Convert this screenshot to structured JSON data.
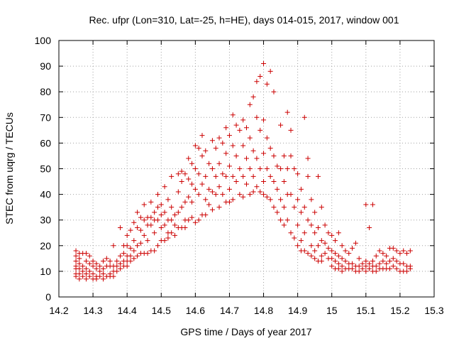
{
  "chart_data": {
    "type": "scatter",
    "title": "Rec. ufpr (Lon=310, Lat=-25, h=HE), days 014-015, 2017, window 001",
    "xlabel": "GPS time / Days of year 2017",
    "ylabel": "STEC from uqrg / TECUs",
    "xlim": [
      14.2,
      15.3
    ],
    "ylim": [
      0,
      100
    ],
    "xticks": [
      "14.2",
      "14.3",
      "14.4",
      "14.5",
      "14.6",
      "14.7",
      "14.8",
      "14.9",
      "15",
      "15.1",
      "15.2",
      "15.3"
    ],
    "yticks": [
      "0",
      "10",
      "20",
      "30",
      "40",
      "50",
      "60",
      "70",
      "80",
      "90",
      "100"
    ],
    "grid": true,
    "marker": "+",
    "marker_color": "#cc0000",
    "points": [
      [
        14.25,
        18
      ],
      [
        14.25,
        16
      ],
      [
        14.25,
        14
      ],
      [
        14.25,
        12
      ],
      [
        14.25,
        11
      ],
      [
        14.25,
        9
      ],
      [
        14.25,
        8
      ],
      [
        14.26,
        17
      ],
      [
        14.26,
        15
      ],
      [
        14.26,
        13
      ],
      [
        14.26,
        11
      ],
      [
        14.26,
        9
      ],
      [
        14.26,
        7
      ],
      [
        14.27,
        17
      ],
      [
        14.27,
        12
      ],
      [
        14.27,
        10
      ],
      [
        14.27,
        8
      ],
      [
        14.28,
        17
      ],
      [
        14.28,
        14
      ],
      [
        14.28,
        11
      ],
      [
        14.28,
        9
      ],
      [
        14.28,
        7
      ],
      [
        14.29,
        16
      ],
      [
        14.29,
        13
      ],
      [
        14.29,
        10
      ],
      [
        14.29,
        8
      ],
      [
        14.3,
        14
      ],
      [
        14.3,
        12
      ],
      [
        14.3,
        9
      ],
      [
        14.3,
        7
      ],
      [
        14.31,
        13
      ],
      [
        14.31,
        11
      ],
      [
        14.31,
        8
      ],
      [
        14.31,
        7
      ],
      [
        14.32,
        12
      ],
      [
        14.32,
        10
      ],
      [
        14.32,
        8
      ],
      [
        14.33,
        14
      ],
      [
        14.33,
        11
      ],
      [
        14.33,
        9
      ],
      [
        14.33,
        7
      ],
      [
        14.34,
        15
      ],
      [
        14.34,
        12
      ],
      [
        14.34,
        8
      ],
      [
        14.35,
        14
      ],
      [
        14.35,
        12
      ],
      [
        14.35,
        9
      ],
      [
        14.35,
        8
      ],
      [
        14.36,
        20
      ],
      [
        14.36,
        12
      ],
      [
        14.36,
        10
      ],
      [
        14.36,
        8
      ],
      [
        14.37,
        14
      ],
      [
        14.37,
        12
      ],
      [
        14.37,
        10
      ],
      [
        14.38,
        27
      ],
      [
        14.38,
        16
      ],
      [
        14.38,
        13
      ],
      [
        14.38,
        11
      ],
      [
        14.39,
        20
      ],
      [
        14.39,
        17
      ],
      [
        14.39,
        14
      ],
      [
        14.39,
        12
      ],
      [
        14.4,
        24
      ],
      [
        14.4,
        20
      ],
      [
        14.4,
        16
      ],
      [
        14.4,
        14
      ],
      [
        14.4,
        12
      ],
      [
        14.41,
        26
      ],
      [
        14.41,
        19
      ],
      [
        14.41,
        16
      ],
      [
        14.41,
        14
      ],
      [
        14.42,
        29
      ],
      [
        14.42,
        22
      ],
      [
        14.42,
        18
      ],
      [
        14.42,
        15
      ],
      [
        14.43,
        33
      ],
      [
        14.43,
        27
      ],
      [
        14.43,
        20
      ],
      [
        14.43,
        16
      ],
      [
        14.44,
        31
      ],
      [
        14.44,
        26
      ],
      [
        14.44,
        21
      ],
      [
        14.44,
        17
      ],
      [
        14.45,
        36
      ],
      [
        14.45,
        30
      ],
      [
        14.45,
        24
      ],
      [
        14.45,
        17
      ],
      [
        14.46,
        31
      ],
      [
        14.46,
        28
      ],
      [
        14.46,
        22
      ],
      [
        14.46,
        17
      ],
      [
        14.47,
        37
      ],
      [
        14.47,
        31
      ],
      [
        14.47,
        28
      ],
      [
        14.47,
        18
      ],
      [
        14.48,
        33
      ],
      [
        14.48,
        30
      ],
      [
        14.48,
        25
      ],
      [
        14.48,
        18
      ],
      [
        14.49,
        40
      ],
      [
        14.49,
        35
      ],
      [
        14.49,
        30
      ],
      [
        14.49,
        20
      ],
      [
        14.5,
        36
      ],
      [
        14.5,
        32
      ],
      [
        14.5,
        27
      ],
      [
        14.5,
        22
      ],
      [
        14.51,
        43
      ],
      [
        14.51,
        33
      ],
      [
        14.51,
        28
      ],
      [
        14.51,
        22
      ],
      [
        14.52,
        38
      ],
      [
        14.52,
        30
      ],
      [
        14.52,
        25
      ],
      [
        14.52,
        23
      ],
      [
        14.53,
        47
      ],
      [
        14.53,
        35
      ],
      [
        14.53,
        30
      ],
      [
        14.53,
        25
      ],
      [
        14.54,
        32
      ],
      [
        14.54,
        28
      ],
      [
        14.54,
        24
      ],
      [
        14.55,
        48
      ],
      [
        14.55,
        41
      ],
      [
        14.55,
        33
      ],
      [
        14.55,
        27
      ],
      [
        14.56,
        49
      ],
      [
        14.56,
        45
      ],
      [
        14.56,
        35
      ],
      [
        14.56,
        27
      ],
      [
        14.57,
        48
      ],
      [
        14.57,
        37
      ],
      [
        14.57,
        30
      ],
      [
        14.57,
        27
      ],
      [
        14.58,
        54
      ],
      [
        14.58,
        46
      ],
      [
        14.58,
        39
      ],
      [
        14.58,
        30
      ],
      [
        14.59,
        52
      ],
      [
        14.59,
        44
      ],
      [
        14.59,
        37
      ],
      [
        14.59,
        31
      ],
      [
        14.6,
        59
      ],
      [
        14.6,
        50
      ],
      [
        14.6,
        42
      ],
      [
        14.6,
        29
      ],
      [
        14.61,
        58
      ],
      [
        14.61,
        48
      ],
      [
        14.61,
        40
      ],
      [
        14.61,
        30
      ],
      [
        14.62,
        63
      ],
      [
        14.62,
        55
      ],
      [
        14.62,
        44
      ],
      [
        14.62,
        32
      ],
      [
        14.63,
        57
      ],
      [
        14.63,
        47
      ],
      [
        14.63,
        38
      ],
      [
        14.63,
        32
      ],
      [
        14.64,
        52
      ],
      [
        14.64,
        42
      ],
      [
        14.64,
        36
      ],
      [
        14.65,
        61
      ],
      [
        14.65,
        50
      ],
      [
        14.65,
        41
      ],
      [
        14.65,
        34
      ],
      [
        14.66,
        58
      ],
      [
        14.66,
        47
      ],
      [
        14.66,
        40
      ],
      [
        14.67,
        62
      ],
      [
        14.67,
        52
      ],
      [
        14.67,
        43
      ],
      [
        14.67,
        35
      ],
      [
        14.68,
        60
      ],
      [
        14.68,
        48
      ],
      [
        14.68,
        40
      ],
      [
        14.69,
        66
      ],
      [
        14.69,
        56
      ],
      [
        14.69,
        47
      ],
      [
        14.69,
        37
      ],
      [
        14.7,
        63
      ],
      [
        14.7,
        51
      ],
      [
        14.7,
        42
      ],
      [
        14.7,
        37
      ],
      [
        14.71,
        71
      ],
      [
        14.71,
        59
      ],
      [
        14.71,
        47
      ],
      [
        14.71,
        38
      ],
      [
        14.72,
        67
      ],
      [
        14.72,
        55
      ],
      [
        14.72,
        45
      ],
      [
        14.73,
        65
      ],
      [
        14.73,
        50
      ],
      [
        14.73,
        40
      ],
      [
        14.74,
        69
      ],
      [
        14.74,
        59
      ],
      [
        14.74,
        47
      ],
      [
        14.74,
        39
      ],
      [
        14.75,
        66
      ],
      [
        14.75,
        54
      ],
      [
        14.75,
        44
      ],
      [
        14.76,
        75
      ],
      [
        14.76,
        62
      ],
      [
        14.76,
        50
      ],
      [
        14.76,
        40
      ],
      [
        14.77,
        78
      ],
      [
        14.77,
        57
      ],
      [
        14.77,
        47
      ],
      [
        14.77,
        41
      ],
      [
        14.78,
        84
      ],
      [
        14.78,
        70
      ],
      [
        14.78,
        54
      ],
      [
        14.78,
        43
      ],
      [
        14.79,
        86
      ],
      [
        14.79,
        65
      ],
      [
        14.79,
        50
      ],
      [
        14.79,
        41
      ],
      [
        14.8,
        91
      ],
      [
        14.8,
        69
      ],
      [
        14.8,
        56
      ],
      [
        14.8,
        45
      ],
      [
        14.8,
        40
      ],
      [
        14.81,
        83
      ],
      [
        14.81,
        62
      ],
      [
        14.81,
        50
      ],
      [
        14.81,
        39
      ],
      [
        14.82,
        88
      ],
      [
        14.82,
        58
      ],
      [
        14.82,
        47
      ],
      [
        14.82,
        38
      ],
      [
        14.83,
        80
      ],
      [
        14.83,
        55
      ],
      [
        14.83,
        45
      ],
      [
        14.83,
        35
      ],
      [
        14.84,
        51
      ],
      [
        14.84,
        42
      ],
      [
        14.84,
        33
      ],
      [
        14.85,
        67
      ],
      [
        14.85,
        50
      ],
      [
        14.85,
        38
      ],
      [
        14.85,
        30
      ],
      [
        14.86,
        55
      ],
      [
        14.86,
        45
      ],
      [
        14.86,
        35
      ],
      [
        14.86,
        28
      ],
      [
        14.87,
        72
      ],
      [
        14.87,
        50
      ],
      [
        14.87,
        40
      ],
      [
        14.87,
        30
      ],
      [
        14.88,
        65
      ],
      [
        14.88,
        55
      ],
      [
        14.88,
        40
      ],
      [
        14.88,
        25
      ],
      [
        14.89,
        50
      ],
      [
        14.89,
        35
      ],
      [
        14.89,
        23
      ],
      [
        14.9,
        48
      ],
      [
        14.9,
        38
      ],
      [
        14.9,
        28
      ],
      [
        14.9,
        20
      ],
      [
        14.91,
        42
      ],
      [
        14.91,
        33
      ],
      [
        14.91,
        22
      ],
      [
        14.91,
        18
      ],
      [
        14.92,
        70
      ],
      [
        14.92,
        35
      ],
      [
        14.92,
        25
      ],
      [
        14.92,
        18
      ],
      [
        14.93,
        54
      ],
      [
        14.93,
        47
      ],
      [
        14.93,
        30
      ],
      [
        14.93,
        17
      ],
      [
        14.94,
        38
      ],
      [
        14.94,
        28
      ],
      [
        14.94,
        20
      ],
      [
        14.94,
        16
      ],
      [
        14.95,
        33
      ],
      [
        14.95,
        25
      ],
      [
        14.95,
        18
      ],
      [
        14.95,
        15
      ],
      [
        14.96,
        47
      ],
      [
        14.96,
        27
      ],
      [
        14.96,
        20
      ],
      [
        14.96,
        14
      ],
      [
        14.97,
        35
      ],
      [
        14.97,
        22
      ],
      [
        14.97,
        16
      ],
      [
        14.97,
        14
      ],
      [
        14.98,
        28
      ],
      [
        14.98,
        21
      ],
      [
        14.98,
        17
      ],
      [
        14.99,
        25
      ],
      [
        14.99,
        19
      ],
      [
        14.99,
        15
      ],
      [
        15.0,
        24
      ],
      [
        15.0,
        18
      ],
      [
        15.0,
        15
      ],
      [
        15.0,
        12
      ],
      [
        15.01,
        22
      ],
      [
        15.01,
        17
      ],
      [
        15.01,
        14
      ],
      [
        15.01,
        11
      ],
      [
        15.02,
        25
      ],
      [
        15.02,
        16
      ],
      [
        15.02,
        13
      ],
      [
        15.02,
        11
      ],
      [
        15.03,
        20
      ],
      [
        15.03,
        15
      ],
      [
        15.03,
        12
      ],
      [
        15.03,
        10
      ],
      [
        15.04,
        18
      ],
      [
        15.04,
        14
      ],
      [
        15.04,
        11
      ],
      [
        15.05,
        17
      ],
      [
        15.05,
        13
      ],
      [
        15.05,
        11
      ],
      [
        15.06,
        19
      ],
      [
        15.06,
        13
      ],
      [
        15.06,
        11
      ],
      [
        15.07,
        21
      ],
      [
        15.07,
        12
      ],
      [
        15.07,
        10
      ],
      [
        15.08,
        15
      ],
      [
        15.08,
        12
      ],
      [
        15.08,
        10
      ],
      [
        15.09,
        13
      ],
      [
        15.09,
        11
      ],
      [
        15.1,
        36
      ],
      [
        15.1,
        14
      ],
      [
        15.1,
        12
      ],
      [
        15.1,
        10
      ],
      [
        15.11,
        27
      ],
      [
        15.11,
        13
      ],
      [
        15.11,
        11
      ],
      [
        15.12,
        36
      ],
      [
        15.12,
        14
      ],
      [
        15.12,
        12
      ],
      [
        15.12,
        10
      ],
      [
        15.13,
        16
      ],
      [
        15.13,
        12
      ],
      [
        15.13,
        10
      ],
      [
        15.14,
        18
      ],
      [
        15.14,
        13
      ],
      [
        15.14,
        11
      ],
      [
        15.15,
        17
      ],
      [
        15.15,
        14
      ],
      [
        15.15,
        11
      ],
      [
        15.16,
        16
      ],
      [
        15.16,
        13
      ],
      [
        15.16,
        11
      ],
      [
        15.17,
        19
      ],
      [
        15.17,
        14
      ],
      [
        15.17,
        11
      ],
      [
        15.18,
        19
      ],
      [
        15.18,
        15
      ],
      [
        15.18,
        12
      ],
      [
        15.19,
        18
      ],
      [
        15.19,
        14
      ],
      [
        15.19,
        11
      ],
      [
        15.2,
        17
      ],
      [
        15.2,
        13
      ],
      [
        15.2,
        10
      ],
      [
        15.21,
        18
      ],
      [
        15.21,
        13
      ],
      [
        15.21,
        10
      ],
      [
        15.22,
        17
      ],
      [
        15.22,
        12
      ],
      [
        15.22,
        10
      ],
      [
        15.23,
        18
      ],
      [
        15.23,
        12
      ],
      [
        15.23,
        11
      ]
    ]
  }
}
